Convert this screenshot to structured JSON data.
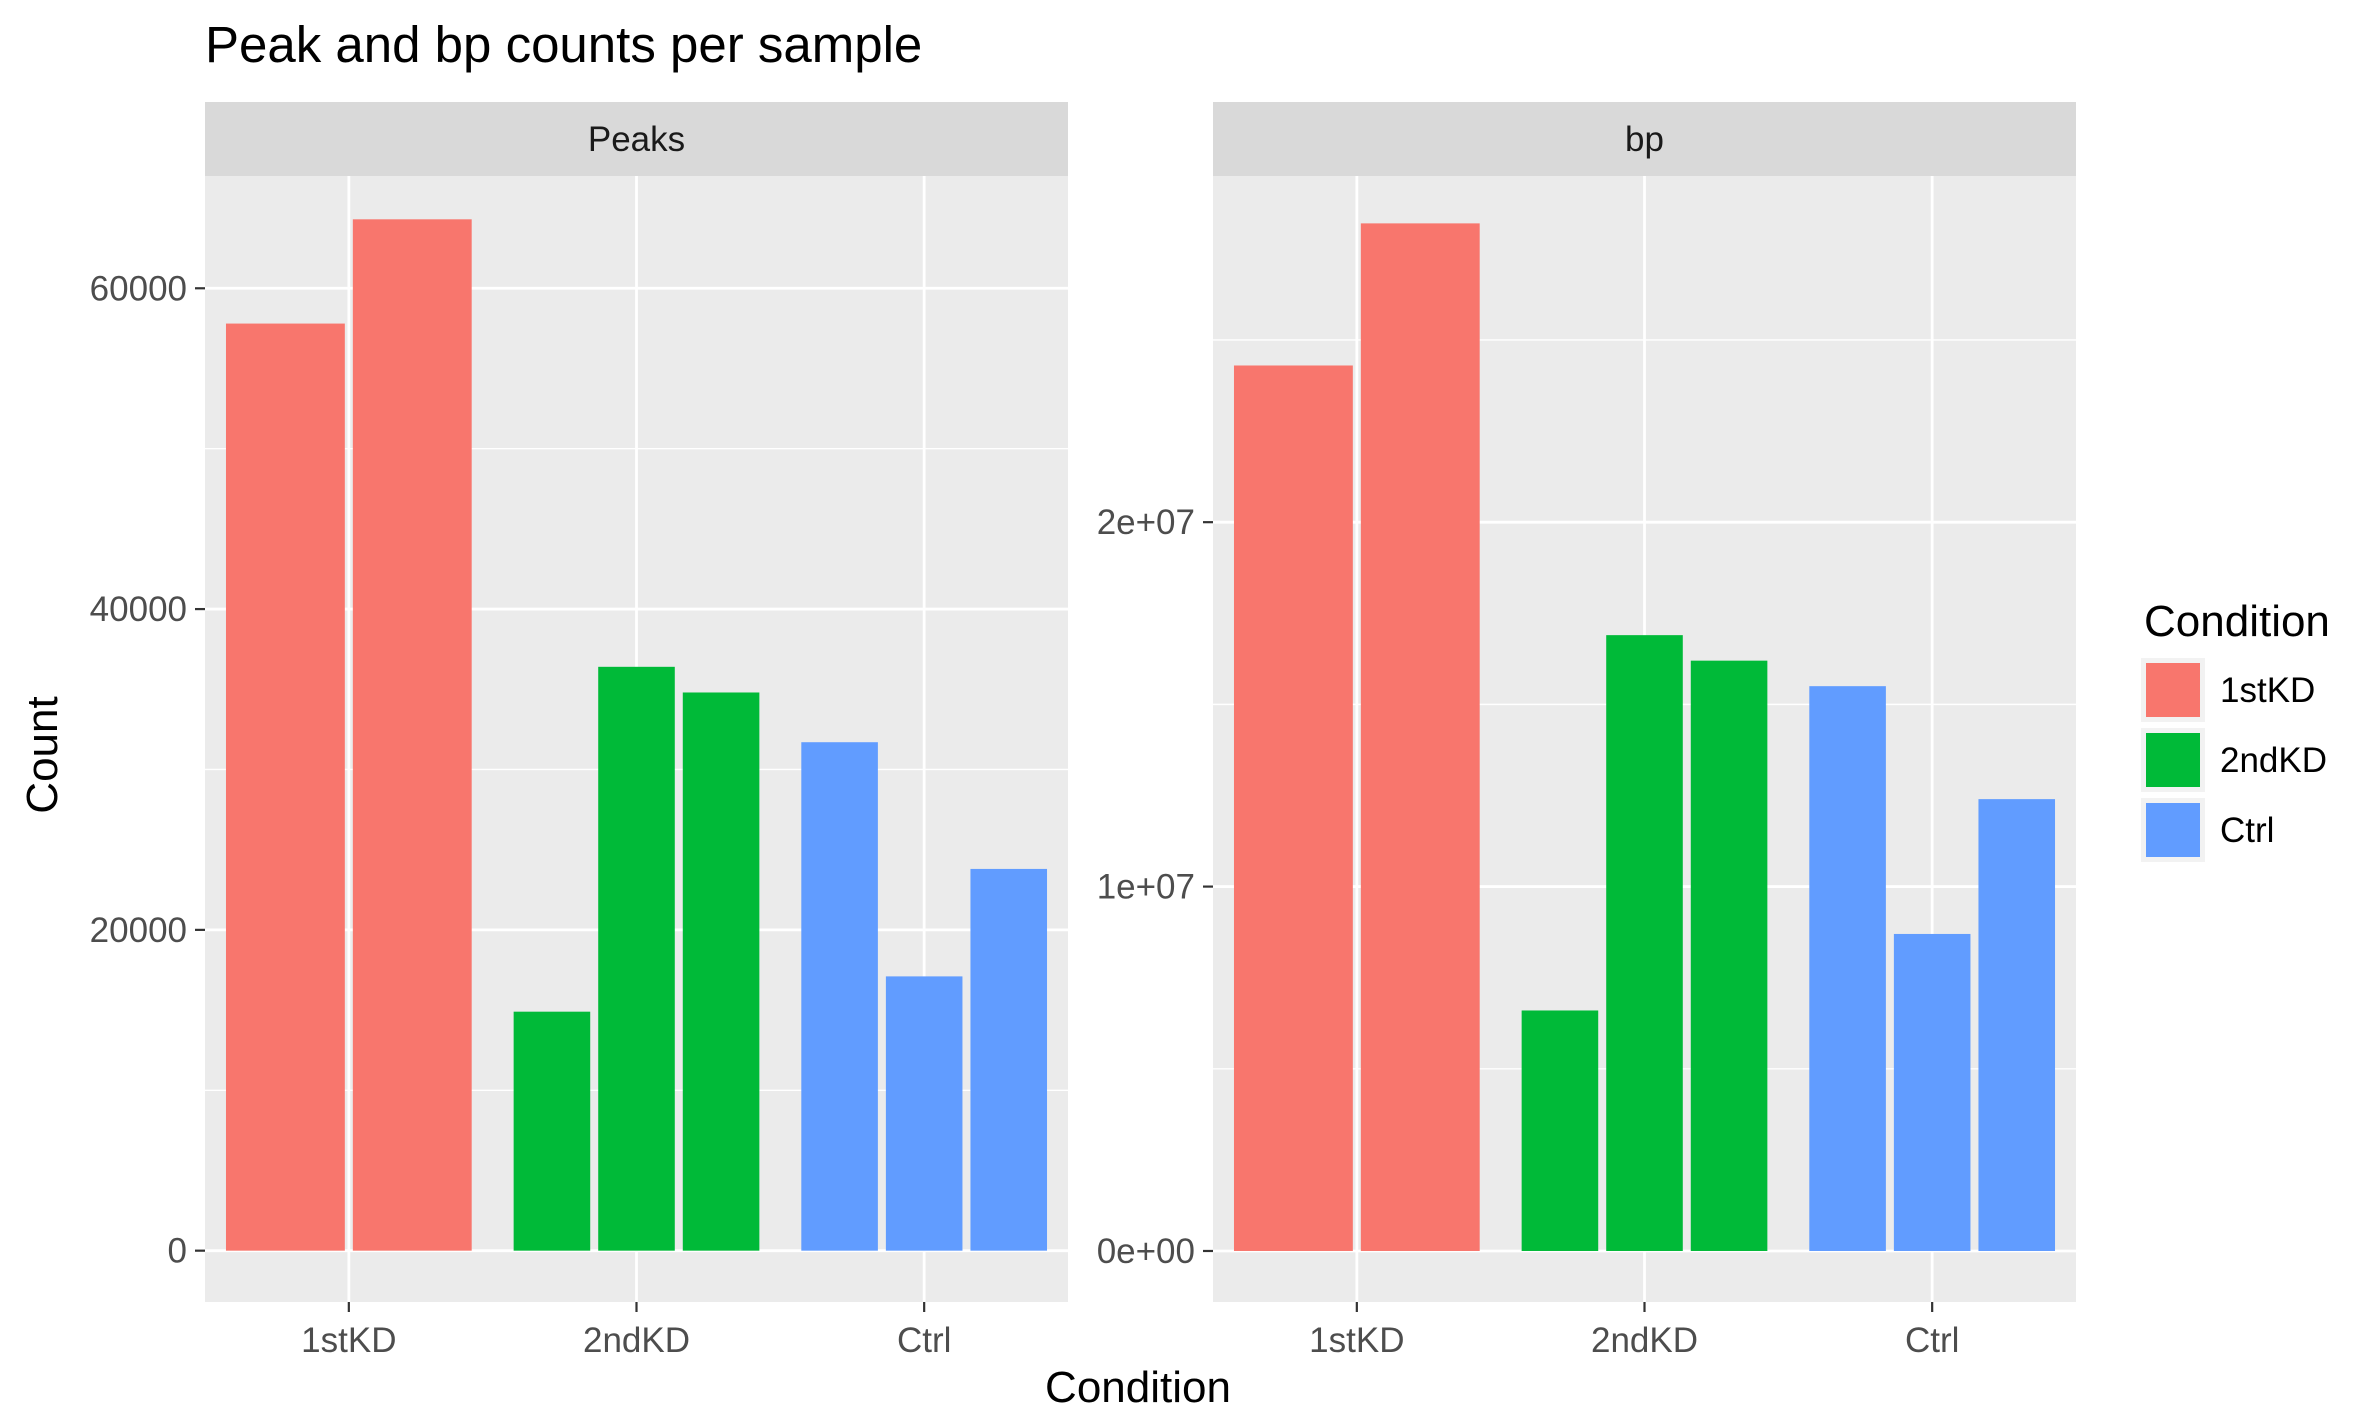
{
  "chart_data": {
    "type": "bar",
    "title": "Peak and bp counts per sample",
    "xlabel": "Condition",
    "ylabel": "Count",
    "grid": true,
    "legend": {
      "title": "Condition",
      "position": "right",
      "entries": [
        {
          "label": "1stKD",
          "color": "#F8766D"
        },
        {
          "label": "2ndKD",
          "color": "#00BA38"
        },
        {
          "label": "Ctrl",
          "color": "#619CFF"
        }
      ]
    },
    "categories": [
      "1stKD",
      "2ndKD",
      "Ctrl"
    ],
    "panels": [
      {
        "strip": "Peaks",
        "ylim": [
          -3200,
          67000
        ],
        "yticks": [
          0,
          20000,
          40000,
          60000
        ],
        "ytick_labels": [
          "0",
          "20000",
          "40000",
          "60000"
        ],
        "yminor": [
          10000,
          30000,
          50000
        ],
        "bars": [
          {
            "condition": "1stKD",
            "value": 57800
          },
          {
            "condition": "1stKD",
            "value": 64300
          },
          {
            "condition": "2ndKD",
            "value": 14900
          },
          {
            "condition": "2ndKD",
            "value": 36400
          },
          {
            "condition": "2ndKD",
            "value": 34800
          },
          {
            "condition": "Ctrl",
            "value": 31700
          },
          {
            "condition": "Ctrl",
            "value": 17100
          },
          {
            "condition": "Ctrl",
            "value": 23800
          }
        ]
      },
      {
        "strip": "bp",
        "ylim": [
          -1400000,
          29500000
        ],
        "yticks": [
          0,
          10000000,
          20000000
        ],
        "ytick_labels": [
          "0e+00",
          "1e+07",
          "2e+07"
        ],
        "yminor": [
          5000000,
          15000000,
          25000000
        ],
        "bars": [
          {
            "condition": "1stKD",
            "value": 24300000
          },
          {
            "condition": "1stKD",
            "value": 28200000
          },
          {
            "condition": "2ndKD",
            "value": 6600000
          },
          {
            "condition": "2ndKD",
            "value": 16900000
          },
          {
            "condition": "2ndKD",
            "value": 16200000
          },
          {
            "condition": "Ctrl",
            "value": 15500000
          },
          {
            "condition": "Ctrl",
            "value": 8700000
          },
          {
            "condition": "Ctrl",
            "value": 12400000
          }
        ]
      }
    ]
  }
}
